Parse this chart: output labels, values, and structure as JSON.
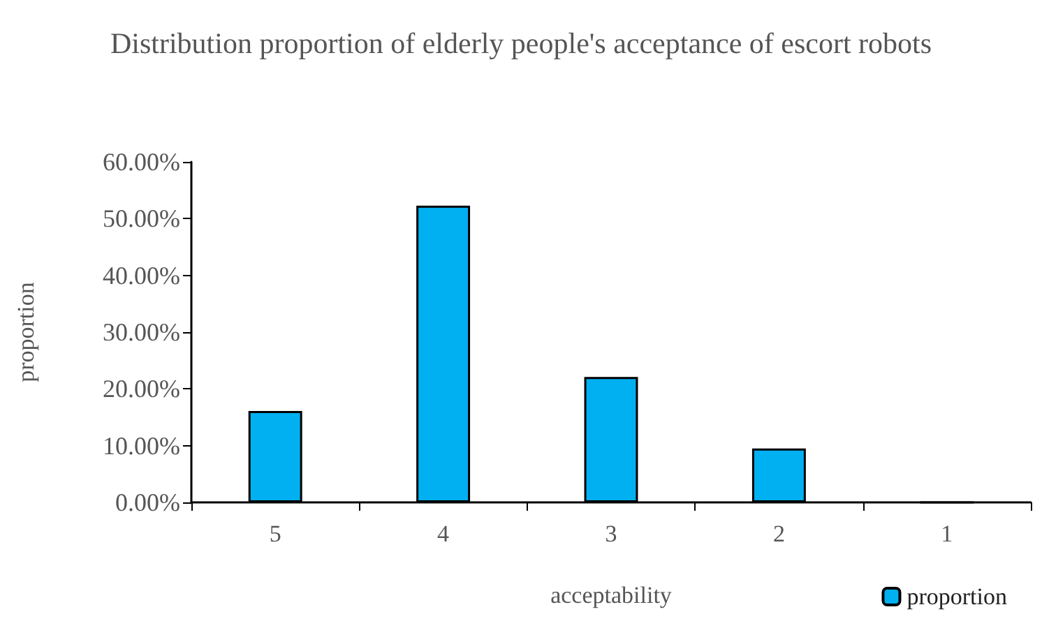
{
  "chart_data": {
    "type": "bar",
    "title": "Distribution proportion of elderly people's acceptance of escort robots",
    "xlabel": "acceptability",
    "ylabel": "proportion",
    "categories": [
      "5",
      "4",
      "3",
      "2",
      "1"
    ],
    "series": [
      {
        "name": "proportion",
        "color": "#00b0f0",
        "values": [
          16.1,
          52.3,
          22.1,
          9.5,
          0
        ]
      }
    ],
    "ylim": [
      0,
      60
    ],
    "yticks": [
      {
        "value": 0,
        "label": "0.00%"
      },
      {
        "value": 10,
        "label": "10.00%"
      },
      {
        "value": 20,
        "label": "20.00%"
      },
      {
        "value": 30,
        "label": "30.00%"
      },
      {
        "value": 40,
        "label": "40.00%"
      },
      {
        "value": 50,
        "label": "50.00%"
      },
      {
        "value": 60,
        "label": "60.00%"
      }
    ],
    "grid": false,
    "legend": "bottom right"
  }
}
